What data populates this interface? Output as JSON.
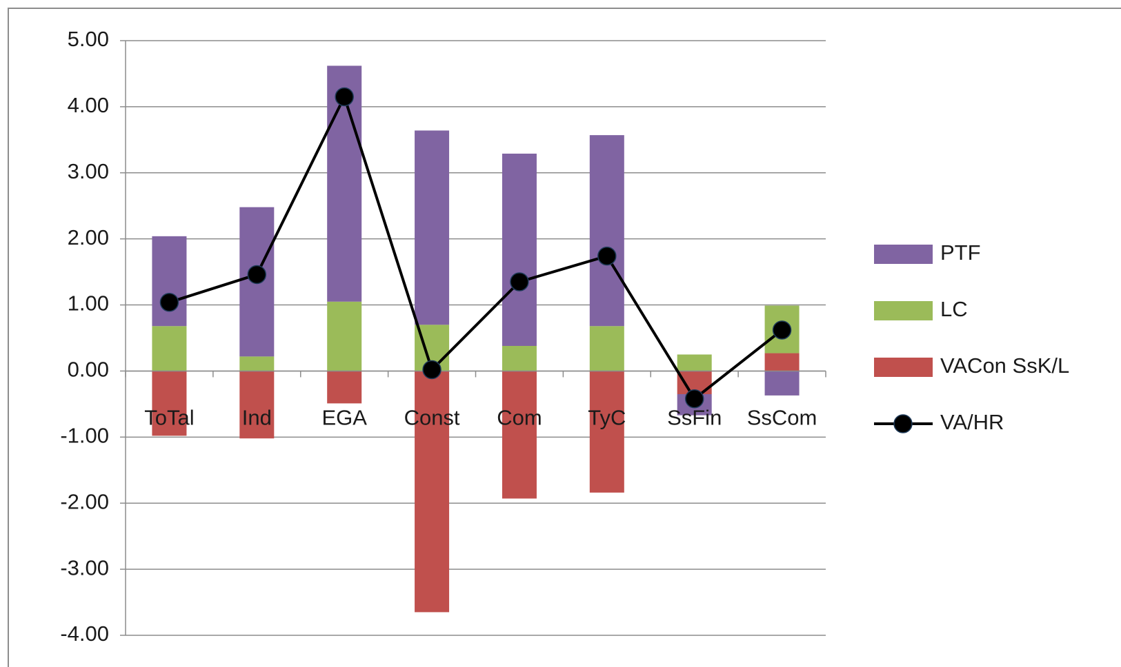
{
  "chart_data": {
    "type": "bar",
    "stacked": true,
    "categories": [
      "ToTal",
      "Ind",
      "EGA",
      "Const",
      "Com",
      "TyC",
      "SsFin",
      "SsCom"
    ],
    "series": [
      {
        "name": "PTF",
        "color": "#8064a2",
        "values": [
          1.36,
          2.26,
          3.57,
          2.94,
          2.91,
          2.89,
          -0.32,
          -0.37
        ]
      },
      {
        "name": "LC",
        "color": "#9bbb59",
        "values": [
          0.68,
          0.22,
          1.05,
          0.7,
          0.38,
          0.68,
          0.25,
          0.72
        ]
      },
      {
        "name": "VACon SsK/L",
        "color": "#c0504d",
        "values": [
          -0.98,
          -1.02,
          -0.49,
          -3.65,
          -1.93,
          -1.84,
          -0.35,
          0.27
        ]
      },
      {
        "name": "VA/HR",
        "type": "line",
        "color": "#000000",
        "values": [
          1.04,
          1.46,
          4.15,
          0.02,
          1.35,
          1.74,
          -0.42,
          0.62
        ]
      }
    ],
    "ylim": [
      -4,
      5
    ],
    "yticks": [
      {
        "value": -4,
        "label": "-4.00"
      },
      {
        "value": -3,
        "label": "-3.00"
      },
      {
        "value": -2,
        "label": "-2.00"
      },
      {
        "value": -1,
        "label": "-1.00"
      },
      {
        "value": 0,
        "label": "0.00"
      },
      {
        "value": 1,
        "label": "1.00"
      },
      {
        "value": 2,
        "label": "2.00"
      },
      {
        "value": 3,
        "label": "3.00"
      },
      {
        "value": 4,
        "label": "4.00"
      },
      {
        "value": 5,
        "label": "5.00"
      }
    ],
    "grid": true,
    "legend": "right"
  }
}
